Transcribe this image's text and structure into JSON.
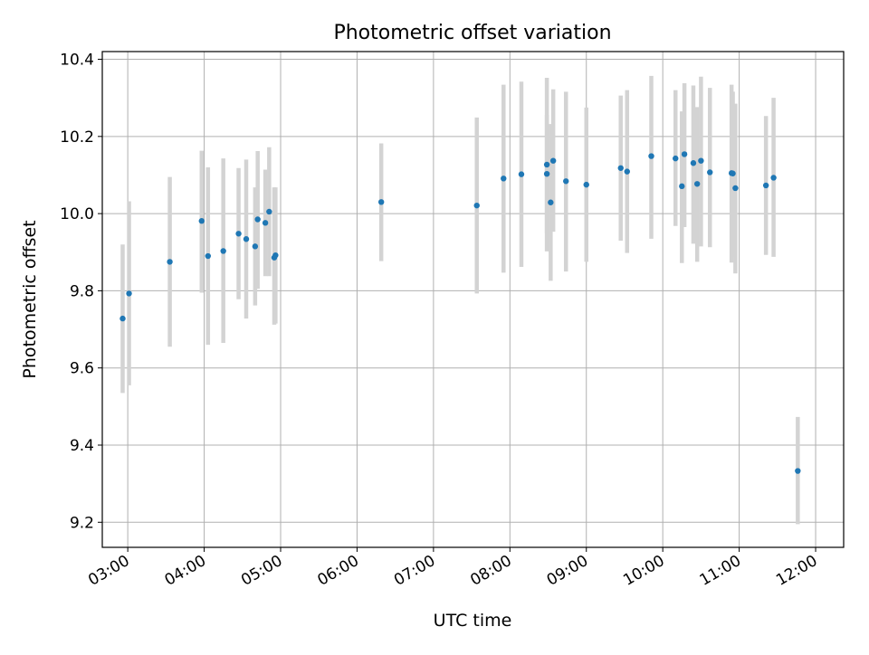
{
  "chart_data": {
    "type": "scatter",
    "title": "Photometric offset variation",
    "xlabel": "UTC time",
    "ylabel": "Photometric offset",
    "x_ticks": [
      "03:00",
      "04:00",
      "05:00",
      "06:00",
      "07:00",
      "08:00",
      "09:00",
      "10:00",
      "11:00",
      "12:00"
    ],
    "y_ticks": [
      "9.2",
      "9.4",
      "9.6",
      "9.8",
      "10.0",
      "10.2",
      "10.4"
    ],
    "xlim": [
      "02:40",
      "12:22"
    ],
    "ylim": [
      9.135,
      10.42
    ],
    "grid": true,
    "colors": {
      "point": "#1f77b4",
      "errorbar": "#d3d3d3",
      "grid": "#b0b0b0"
    },
    "points": [
      {
        "t": "02:56",
        "y": 9.728,
        "lo": 9.535,
        "hi": 9.92
      },
      {
        "t": "03:01",
        "y": 9.793,
        "lo": 9.555,
        "hi": 10.032
      },
      {
        "t": "03:33",
        "y": 9.875,
        "lo": 9.655,
        "hi": 10.095
      },
      {
        "t": "03:58",
        "y": 9.981,
        "lo": 9.795,
        "hi": 10.163
      },
      {
        "t": "04:03",
        "y": 9.89,
        "lo": 9.66,
        "hi": 10.12
      },
      {
        "t": "04:15",
        "y": 9.903,
        "lo": 9.665,
        "hi": 10.143
      },
      {
        "t": "04:27",
        "y": 9.948,
        "lo": 9.778,
        "hi": 10.118
      },
      {
        "t": "04:33",
        "y": 9.934,
        "lo": 9.728,
        "hi": 10.14
      },
      {
        "t": "04:40",
        "y": 9.915,
        "lo": 9.762,
        "hi": 10.068
      },
      {
        "t": "04:42",
        "y": 9.985,
        "lo": 9.805,
        "hi": 10.162
      },
      {
        "t": "04:48",
        "y": 9.976,
        "lo": 9.838,
        "hi": 10.114
      },
      {
        "t": "04:51",
        "y": 10.005,
        "lo": 9.838,
        "hi": 10.172
      },
      {
        "t": "04:55",
        "y": 9.886,
        "lo": 9.712,
        "hi": 10.068
      },
      {
        "t": "04:56",
        "y": 9.892,
        "lo": 9.715,
        "hi": 10.068
      },
      {
        "t": "06:19",
        "y": 10.03,
        "lo": 9.877,
        "hi": 10.182
      },
      {
        "t": "07:34",
        "y": 10.021,
        "lo": 9.793,
        "hi": 10.249
      },
      {
        "t": "07:55",
        "y": 10.091,
        "lo": 9.847,
        "hi": 10.334
      },
      {
        "t": "08:09",
        "y": 10.102,
        "lo": 9.862,
        "hi": 10.342
      },
      {
        "t": "08:29",
        "y": 10.127,
        "lo": 9.902,
        "hi": 10.352
      },
      {
        "t": "08:29",
        "y": 10.103,
        "lo": 9.95,
        "hi": 10.256
      },
      {
        "t": "08:32",
        "y": 10.029,
        "lo": 9.826,
        "hi": 10.232
      },
      {
        "t": "08:34",
        "y": 10.137,
        "lo": 9.953,
        "hi": 10.322
      },
      {
        "t": "08:44",
        "y": 10.084,
        "lo": 9.85,
        "hi": 10.316
      },
      {
        "t": "09:00",
        "y": 10.075,
        "lo": 9.875,
        "hi": 10.275
      },
      {
        "t": "09:27",
        "y": 10.118,
        "lo": 9.93,
        "hi": 10.306
      },
      {
        "t": "09:32",
        "y": 10.109,
        "lo": 9.898,
        "hi": 10.32
      },
      {
        "t": "09:51",
        "y": 10.149,
        "lo": 9.935,
        "hi": 10.357
      },
      {
        "t": "10:10",
        "y": 10.143,
        "lo": 9.968,
        "hi": 10.32
      },
      {
        "t": "10:15",
        "y": 10.071,
        "lo": 9.872,
        "hi": 10.265
      },
      {
        "t": "10:17",
        "y": 10.154,
        "lo": 9.965,
        "hi": 10.338
      },
      {
        "t": "10:24",
        "y": 10.131,
        "lo": 9.922,
        "hi": 10.332
      },
      {
        "t": "10:27",
        "y": 10.077,
        "lo": 9.875,
        "hi": 10.276
      },
      {
        "t": "10:30",
        "y": 10.137,
        "lo": 9.915,
        "hi": 10.355
      },
      {
        "t": "10:37",
        "y": 10.107,
        "lo": 9.913,
        "hi": 10.326
      },
      {
        "t": "10:54",
        "y": 10.105,
        "lo": 9.873,
        "hi": 10.334
      },
      {
        "t": "10:55",
        "y": 10.104,
        "lo": 9.887,
        "hi": 10.316
      },
      {
        "t": "10:57",
        "y": 10.066,
        "lo": 9.845,
        "hi": 10.285
      },
      {
        "t": "11:21",
        "y": 10.073,
        "lo": 9.893,
        "hi": 10.253
      },
      {
        "t": "11:27",
        "y": 10.093,
        "lo": 9.888,
        "hi": 10.3
      },
      {
        "t": "11:46",
        "y": 9.333,
        "lo": 9.195,
        "hi": 9.473
      }
    ]
  }
}
